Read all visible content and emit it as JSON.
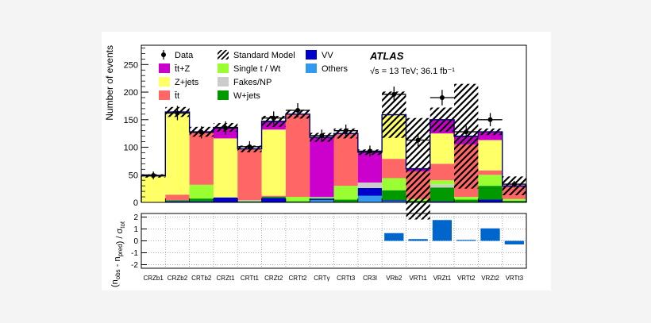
{
  "chart_data": [
    {
      "type": "bar",
      "stacked": true,
      "ylabel": "Number of events",
      "ylim": [
        0,
        285
      ],
      "yticks": [
        0,
        50,
        100,
        150,
        200,
        250
      ],
      "categories": [
        "CRZb1",
        "CRZb2",
        "CRTb2",
        "CRZt1",
        "CRTt1",
        "CRZt2",
        "CRTt2",
        "CRTγ",
        "CRTt3",
        "CR3l",
        "VRb2",
        "VRTt1",
        "VRZt1",
        "VRTt2",
        "VRZt2",
        "VRTt3"
      ],
      "annotation": {
        "experiment": "ATLAS",
        "energy": "√s = 13 TeV; 36.1 fb⁻¹"
      },
      "legend_placement": "top",
      "series": [
        {
          "name": "Others",
          "color": "#3399ee",
          "values": [
            0,
            0,
            0,
            0,
            0,
            0,
            0,
            4,
            0,
            12,
            2,
            0,
            0,
            0,
            0,
            0
          ]
        },
        {
          "name": "VV",
          "color": "#0000cc",
          "values": [
            0,
            2,
            2,
            9,
            0,
            8,
            0,
            2,
            0,
            14,
            2,
            0,
            2,
            0,
            5,
            0
          ]
        },
        {
          "name": "W+jets",
          "color": "#009900",
          "values": [
            0,
            2,
            5,
            0,
            2,
            2,
            2,
            2,
            5,
            0,
            18,
            3,
            25,
            5,
            25,
            3
          ]
        },
        {
          "name": "Fakes/NP",
          "color": "#cccccc",
          "values": [
            0,
            0,
            0,
            0,
            2,
            0,
            0,
            2,
            0,
            10,
            0,
            0,
            5,
            0,
            0,
            0
          ]
        },
        {
          "name": "Single t / Wt",
          "color": "#99ff33",
          "values": [
            0,
            0,
            25,
            0,
            0,
            0,
            8,
            0,
            25,
            0,
            22,
            3,
            8,
            5,
            20,
            3
          ]
        },
        {
          "name": "t̄t",
          "color": "#ff6666",
          "values": [
            0,
            10,
            94,
            0,
            93,
            2,
            150,
            0,
            95,
            0,
            35,
            50,
            30,
            95,
            8,
            22
          ]
        },
        {
          "name": "Z+jets",
          "color": "#ffff66",
          "values": [
            48,
            150,
            0,
            107,
            0,
            120,
            0,
            0,
            0,
            0,
            80,
            0,
            55,
            0,
            55,
            0
          ]
        },
        {
          "name": "t̄t+Z",
          "color": "#cc00cc",
          "values": [
            0,
            0,
            2,
            20,
            0,
            15,
            0,
            108,
            0,
            55,
            0,
            5,
            25,
            15,
            15,
            2
          ]
        }
      ],
      "total_sm": [
        48,
        164,
        128,
        136,
        97,
        147,
        160,
        118,
        125,
        91,
        159,
        61,
        150,
        120,
        128,
        30
      ],
      "sm_uncertainty": [
        3,
        9,
        9,
        8,
        6,
        10,
        8,
        8,
        9,
        5,
        42,
        92,
        22,
        95,
        6,
        17
      ],
      "data": [
        {
          "category": "CRZb1",
          "y": 49,
          "err": 7
        },
        {
          "category": "CRZb2",
          "y": 162,
          "err": 13
        },
        {
          "category": "CRTb2",
          "y": 127,
          "err": 11
        },
        {
          "category": "CRZt1",
          "y": 135,
          "err": 12
        },
        {
          "category": "CRTt1",
          "y": 101,
          "err": 10
        },
        {
          "category": "CRZt2",
          "y": 153,
          "err": 12
        },
        {
          "category": "CRTt2",
          "y": 167,
          "err": 13
        },
        {
          "category": "CRTγ",
          "y": 121,
          "err": 11
        },
        {
          "category": "CRTt3",
          "y": 130,
          "err": 11
        },
        {
          "category": "CR3l",
          "y": 93,
          "err": 10
        },
        {
          "category": "VRb2",
          "y": 196,
          "err": 14
        },
        {
          "category": "VRTt1",
          "y": 113,
          "err": 11
        },
        {
          "category": "VRZt1",
          "y": 190,
          "err": 14
        },
        {
          "category": "VRTt2",
          "y": 128,
          "err": 11
        },
        {
          "category": "VRZt2",
          "y": 150,
          "err": 12
        },
        {
          "category": "VRTt3",
          "y": 33,
          "err": 6
        }
      ]
    },
    {
      "type": "bar",
      "ylabel": "(nₒᵦₛ - nₚᵣₑₒ) / σₜₒₜ",
      "ylabel_parts": {
        "open": "(n",
        "obs": "obs",
        "minus": " - n",
        "pred": "pred",
        "close": ") / σ",
        "tot": "tot"
      },
      "ylim": [
        -2.3,
        2.3
      ],
      "yticks": [
        -2,
        -1,
        0,
        1,
        2
      ],
      "categories": [
        "CRZb1",
        "CRZb2",
        "CRTb2",
        "CRZt1",
        "CRTt1",
        "CRZt2",
        "CRTt2",
        "CRTγ",
        "CRTt3",
        "CR3l",
        "VRb2",
        "VRTt1",
        "VRZt1",
        "VRTt2",
        "VRZt2",
        "VRTt3"
      ],
      "values": [
        null,
        null,
        null,
        null,
        null,
        null,
        null,
        null,
        null,
        null,
        0.65,
        0.15,
        1.75,
        0.08,
        1.05,
        -0.3
      ],
      "color": "#0066cc",
      "grid": true
    }
  ],
  "legend": [
    {
      "label": "Data",
      "symbol": "marker"
    },
    {
      "label": "Standard Model",
      "symbol": "hatch"
    },
    {
      "label": "VV",
      "symbol": "box",
      "color": "#0000cc"
    },
    {
      "label": "t̄t+Z",
      "symbol": "box",
      "color": "#cc00cc"
    },
    {
      "label": "Single t / Wt",
      "symbol": "box",
      "color": "#99ff33"
    },
    {
      "label": "Others",
      "symbol": "box",
      "color": "#3399ee"
    },
    {
      "label": "Z+jets",
      "symbol": "box",
      "color": "#ffff66"
    },
    {
      "label": "Fakes/NP",
      "symbol": "box",
      "color": "#cccccc"
    },
    {
      "label": "t̄t",
      "symbol": "box",
      "color": "#ff6666"
    },
    {
      "label": "W+jets",
      "symbol": "box",
      "color": "#009900"
    }
  ]
}
